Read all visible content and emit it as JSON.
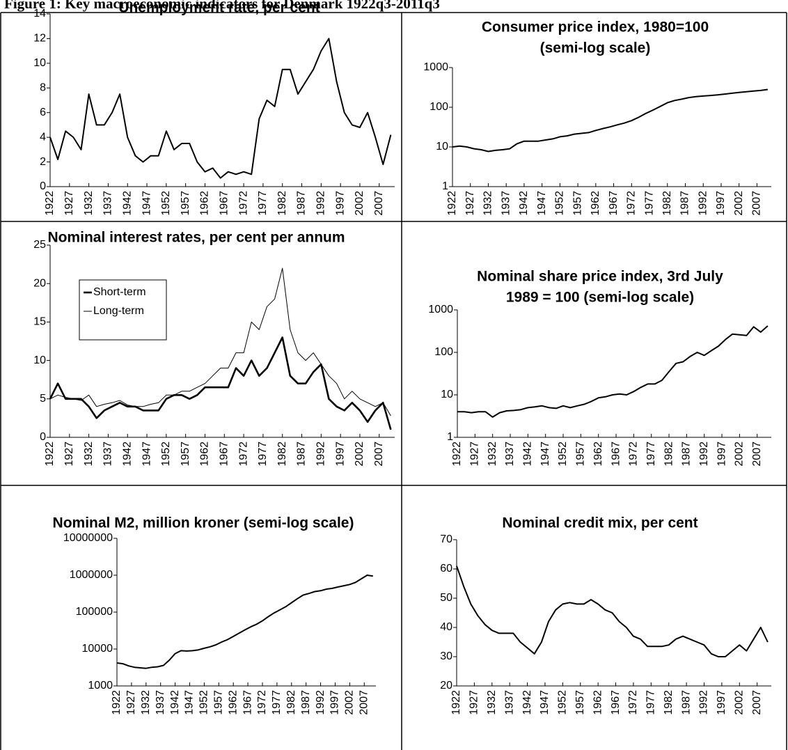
{
  "figure_title": "Figure 1: Key macroeconomic indicators for Denmark 1922q3-2011q3",
  "chart_data": [
    {
      "type": "line",
      "title": [
        "Unemployment rate, per cent"
      ],
      "color": "#000000",
      "x": [
        1922,
        1924,
        1926,
        1928,
        1930,
        1932,
        1934,
        1936,
        1938,
        1940,
        1942,
        1944,
        1946,
        1948,
        1950,
        1952,
        1954,
        1956,
        1958,
        1960,
        1962,
        1964,
        1966,
        1968,
        1970,
        1972,
        1974,
        1976,
        1978,
        1980,
        1982,
        1984,
        1986,
        1988,
        1990,
        1992,
        1994,
        1996,
        1998,
        2000,
        2002,
        2004,
        2006,
        2008,
        2010
      ],
      "values": [
        4.0,
        2.2,
        4.5,
        4.0,
        3.0,
        7.5,
        5.0,
        5.0,
        6.0,
        7.5,
        4.0,
        2.5,
        2.0,
        2.5,
        2.5,
        4.5,
        3.0,
        3.5,
        3.5,
        2.0,
        1.2,
        1.5,
        0.7,
        1.2,
        1.0,
        1.2,
        1.0,
        5.5,
        7.0,
        6.5,
        9.5,
        9.5,
        7.5,
        8.5,
        9.5,
        11.0,
        12.0,
        8.5,
        6.0,
        5.0,
        4.8,
        6.0,
        4.0,
        1.8,
        4.2
      ],
      "xlim": [
        1922,
        2011
      ],
      "xticks": [
        1922,
        1927,
        1932,
        1937,
        1942,
        1947,
        1952,
        1957,
        1962,
        1967,
        1972,
        1977,
        1982,
        1987,
        1992,
        1997,
        2002,
        2007
      ],
      "ylim": [
        0,
        14
      ],
      "yticks": [
        0,
        2,
        4,
        6,
        8,
        10,
        12,
        14
      ]
    },
    {
      "type": "line",
      "title": [
        "Consumer price index, 1980=100",
        "(semi-log scale)"
      ],
      "color": "#000000",
      "log_scale": true,
      "x": [
        1922,
        1924,
        1926,
        1928,
        1930,
        1932,
        1934,
        1936,
        1938,
        1940,
        1942,
        1944,
        1946,
        1948,
        1950,
        1952,
        1954,
        1956,
        1958,
        1960,
        1962,
        1964,
        1966,
        1968,
        1970,
        1972,
        1974,
        1976,
        1978,
        1980,
        1982,
        1984,
        1986,
        1988,
        1990,
        1992,
        1994,
        1996,
        1998,
        2000,
        2002,
        2004,
        2006,
        2008,
        2010
      ],
      "values": [
        10,
        10.5,
        10,
        9,
        8.5,
        7.7,
        8.2,
        8.5,
        9,
        12,
        14,
        14,
        14,
        15,
        16,
        18,
        19,
        21,
        22,
        23,
        26,
        29,
        32,
        36,
        40,
        46,
        56,
        70,
        85,
        105,
        130,
        148,
        160,
        175,
        185,
        192,
        198,
        205,
        215,
        225,
        235,
        245,
        255,
        265,
        280
      ],
      "xlim": [
        1922,
        2011
      ],
      "xticks": [
        1922,
        1927,
        1932,
        1937,
        1942,
        1947,
        1952,
        1957,
        1962,
        1967,
        1972,
        1977,
        1982,
        1987,
        1992,
        1997,
        2002,
        2007
      ],
      "ylim": [
        1,
        1000
      ],
      "yticks": [
        1,
        10,
        100,
        1000
      ]
    },
    {
      "type": "line",
      "title": [
        "Nominal interest rates, per cent per annum"
      ],
      "x": [
        1922,
        1924,
        1926,
        1928,
        1930,
        1932,
        1934,
        1936,
        1938,
        1940,
        1942,
        1944,
        1946,
        1948,
        1950,
        1952,
        1954,
        1956,
        1958,
        1960,
        1962,
        1964,
        1966,
        1968,
        1970,
        1972,
        1974,
        1976,
        1978,
        1980,
        1982,
        1984,
        1986,
        1988,
        1990,
        1992,
        1994,
        1996,
        1998,
        2000,
        2002,
        2004,
        2006,
        2008,
        2010
      ],
      "series": [
        {
          "name": "Short-term",
          "color": "#000000",
          "line_width": 2.6,
          "values": [
            5,
            7,
            5,
            5,
            5,
            4,
            2.5,
            3.5,
            4,
            4.5,
            4,
            4,
            3.5,
            3.5,
            3.5,
            5,
            5.5,
            5.5,
            5,
            5.5,
            6.5,
            6.5,
            6.5,
            6.5,
            9,
            8,
            10,
            8,
            9,
            11,
            13,
            8,
            7,
            7,
            8.5,
            9.5,
            5,
            4,
            3.5,
            4.5,
            3.5,
            2,
            3.5,
            4.5,
            1
          ]
        },
        {
          "name": "Long-term",
          "color": "#000000",
          "line_width": 1,
          "values": [
            5,
            5.5,
            5.2,
            5,
            4.8,
            5.5,
            4,
            4.3,
            4.5,
            4.8,
            4.2,
            4,
            4,
            4.3,
            4.5,
            5.5,
            5.5,
            6,
            6,
            6.5,
            7,
            8,
            9,
            9,
            11,
            11,
            15,
            14,
            17,
            18,
            22,
            14,
            11,
            10,
            11,
            9.5,
            8,
            7,
            5,
            6,
            5,
            4.5,
            4,
            4.5,
            2.8
          ]
        }
      ],
      "xlim": [
        1922,
        2011
      ],
      "xticks": [
        1922,
        1927,
        1932,
        1937,
        1942,
        1947,
        1952,
        1957,
        1962,
        1967,
        1972,
        1977,
        1982,
        1987,
        1992,
        1997,
        2002,
        2007
      ],
      "ylim": [
        0,
        25
      ],
      "yticks": [
        0,
        5,
        10,
        15,
        20,
        25
      ],
      "legend": "top-left"
    },
    {
      "type": "line",
      "title": [
        "Nominal share price index, 3rd July",
        "1989 = 100 (semi-log scale)"
      ],
      "color": "#000000",
      "log_scale": true,
      "x": [
        1922,
        1924,
        1926,
        1928,
        1930,
        1932,
        1934,
        1936,
        1938,
        1940,
        1942,
        1944,
        1946,
        1948,
        1950,
        1952,
        1954,
        1956,
        1958,
        1960,
        1962,
        1964,
        1966,
        1968,
        1970,
        1972,
        1974,
        1976,
        1978,
        1980,
        1982,
        1984,
        1986,
        1988,
        1990,
        1992,
        1994,
        1996,
        1998,
        2000,
        2002,
        2004,
        2006,
        2008,
        2010
      ],
      "values": [
        4,
        4,
        3.8,
        4,
        4,
        3,
        3.8,
        4.2,
        4.3,
        4.5,
        5,
        5.2,
        5.5,
        5,
        4.8,
        5.5,
        5,
        5.5,
        6,
        7,
        8.5,
        9,
        10,
        10.5,
        10,
        12,
        15,
        18,
        18,
        22,
        35,
        55,
        60,
        80,
        100,
        85,
        110,
        140,
        200,
        270,
        260,
        250,
        400,
        300,
        420
      ],
      "xlim": [
        1922,
        2011
      ],
      "xticks": [
        1922,
        1927,
        1932,
        1937,
        1942,
        1947,
        1952,
        1957,
        1962,
        1967,
        1972,
        1977,
        1982,
        1987,
        1992,
        1997,
        2002,
        2007
      ],
      "ylim": [
        1,
        1000
      ],
      "yticks": [
        1,
        10,
        100,
        1000
      ]
    },
    {
      "type": "line",
      "title": [
        "Nominal M2, million kroner (semi-log scale)"
      ],
      "color": "#000000",
      "log_scale": true,
      "x": [
        1922,
        1924,
        1926,
        1928,
        1930,
        1932,
        1934,
        1936,
        1938,
        1940,
        1942,
        1944,
        1946,
        1948,
        1950,
        1952,
        1954,
        1956,
        1958,
        1960,
        1962,
        1964,
        1966,
        1968,
        1970,
        1972,
        1974,
        1976,
        1978,
        1980,
        1982,
        1984,
        1986,
        1988,
        1990,
        1992,
        1994,
        1996,
        1998,
        2000,
        2002,
        2004,
        2006,
        2008,
        2010
      ],
      "values": [
        4200,
        4000,
        3500,
        3200,
        3100,
        3000,
        3200,
        3300,
        3600,
        5000,
        7500,
        9000,
        8800,
        9000,
        9500,
        10500,
        11500,
        13000,
        15500,
        18000,
        22000,
        27000,
        33000,
        40000,
        47000,
        58000,
        75000,
        95000,
        115000,
        140000,
        180000,
        230000,
        290000,
        320000,
        360000,
        380000,
        420000,
        440000,
        480000,
        520000,
        560000,
        640000,
        800000,
        1000000,
        950000
      ],
      "xlim": [
        1922,
        2011
      ],
      "xticks": [
        1922,
        1927,
        1932,
        1937,
        1942,
        1947,
        1952,
        1957,
        1962,
        1967,
        1972,
        1977,
        1982,
        1987,
        1992,
        1997,
        2002,
        2007
      ],
      "ylim": [
        1000,
        10000000
      ],
      "yticks": [
        1000,
        10000,
        100000,
        1000000,
        10000000
      ]
    },
    {
      "type": "line",
      "title": [
        "Nominal credit mix, per cent"
      ],
      "color": "#000000",
      "x": [
        1922,
        1924,
        1926,
        1928,
        1930,
        1932,
        1934,
        1936,
        1938,
        1940,
        1942,
        1944,
        1946,
        1948,
        1950,
        1952,
        1954,
        1956,
        1958,
        1960,
        1962,
        1964,
        1966,
        1968,
        1970,
        1972,
        1974,
        1976,
        1978,
        1980,
        1982,
        1984,
        1986,
        1988,
        1990,
        1992,
        1994,
        1996,
        1998,
        2000,
        2002,
        2004,
        2006,
        2008,
        2010
      ],
      "values": [
        61,
        54,
        48,
        44,
        41,
        39,
        38,
        38,
        38,
        35,
        33,
        31,
        35,
        42,
        46,
        48,
        48.5,
        48,
        48,
        49.5,
        48,
        46,
        45,
        42,
        40,
        37,
        36,
        33.5,
        33.5,
        33.5,
        34,
        36,
        37,
        36,
        35,
        34,
        31,
        30,
        30,
        32,
        34,
        32,
        36,
        40,
        35
      ],
      "xlim": [
        1922,
        2011
      ],
      "xticks": [
        1922,
        1927,
        1932,
        1937,
        1942,
        1947,
        1952,
        1957,
        1962,
        1967,
        1972,
        1977,
        1982,
        1987,
        1992,
        1997,
        2002,
        2007
      ],
      "ylim": [
        20,
        70
      ],
      "yticks": [
        20,
        30,
        40,
        50,
        60,
        70
      ]
    }
  ]
}
